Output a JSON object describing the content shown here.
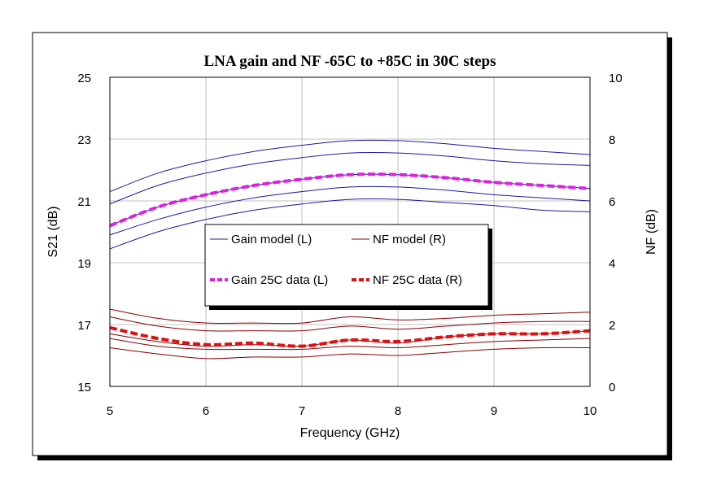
{
  "chart_data": {
    "type": "line",
    "title": "LNA gain and NF -65C to +85C in 30C steps",
    "xlabel": "Frequency (GHz)",
    "ylabel_left": "S21 (dB)",
    "ylabel_right": "NF (dB)",
    "xlim": [
      5,
      10
    ],
    "ylim_left": [
      15,
      25
    ],
    "ylim_right": [
      0,
      10
    ],
    "xticks": [
      "5",
      "6",
      "7",
      "8",
      "9",
      "10"
    ],
    "yticks_left": [
      "15",
      "17",
      "19",
      "21",
      "23",
      "25"
    ],
    "yticks_right": [
      "0",
      "2",
      "4",
      "6",
      "8",
      "10"
    ],
    "grid": true,
    "legend_position": "center",
    "x": [
      5.0,
      5.5,
      6.0,
      6.5,
      7.0,
      7.5,
      8.0,
      8.5,
      9.0,
      9.5,
      10.0
    ],
    "series": [
      {
        "name": "Gain model (L)",
        "axis": "left",
        "color": "#1a1aa0",
        "style": "solid",
        "group": "gain-model",
        "curves": [
          {
            "values": [
              21.3,
              21.9,
              22.3,
              22.6,
              22.8,
              22.95,
              22.95,
              22.85,
              22.7,
              22.6,
              22.5
            ]
          },
          {
            "values": [
              20.9,
              21.5,
              21.9,
              22.2,
              22.4,
              22.55,
              22.55,
              22.45,
              22.3,
              22.2,
              22.15
            ]
          },
          {
            "values": [
              20.2,
              20.8,
              21.2,
              21.5,
              21.7,
              21.85,
              21.85,
              21.75,
              21.6,
              21.5,
              21.4
            ]
          },
          {
            "values": [
              19.9,
              20.4,
              20.8,
              21.1,
              21.3,
              21.45,
              21.45,
              21.35,
              21.2,
              21.1,
              21.0
            ]
          },
          {
            "values": [
              19.45,
              20.0,
              20.4,
              20.7,
              20.9,
              21.05,
              21.05,
              20.95,
              20.85,
              20.7,
              20.65
            ]
          }
        ]
      },
      {
        "name": "NF model (R)",
        "axis": "right",
        "color": "#8b0000",
        "style": "solid",
        "group": "nf-model",
        "curves": [
          {
            "values": [
              2.5,
              2.2,
              2.05,
              2.05,
              2.05,
              2.25,
              2.15,
              2.2,
              2.3,
              2.35,
              2.4
            ]
          },
          {
            "values": [
              2.25,
              1.95,
              1.8,
              1.8,
              1.8,
              1.95,
              1.85,
              1.95,
              2.05,
              2.1,
              2.1
            ]
          },
          {
            "values": [
              1.7,
              1.45,
              1.3,
              1.35,
              1.3,
              1.5,
              1.4,
              1.6,
              1.7,
              1.7,
              1.8
            ]
          },
          {
            "values": [
              1.55,
              1.3,
              1.2,
              1.2,
              1.2,
              1.3,
              1.25,
              1.35,
              1.45,
              1.5,
              1.55
            ]
          },
          {
            "values": [
              1.25,
              1.05,
              0.9,
              0.95,
              0.95,
              1.05,
              1.0,
              1.1,
              1.2,
              1.25,
              1.25
            ]
          }
        ]
      },
      {
        "name": "Gain 25C data (L)",
        "axis": "left",
        "color": "#e020e0",
        "style": "dashed",
        "group": "gain-data",
        "curves": [
          {
            "values": [
              20.2,
              20.8,
              21.2,
              21.5,
              21.7,
              21.85,
              21.85,
              21.75,
              21.6,
              21.5,
              21.4
            ]
          }
        ]
      },
      {
        "name": "NF 25C data (R)",
        "axis": "right",
        "color": "#e01010",
        "style": "dashed",
        "group": "nf-data",
        "curves": [
          {
            "values": [
              1.9,
              1.55,
              1.35,
              1.4,
              1.3,
              1.5,
              1.45,
              1.6,
              1.7,
              1.7,
              1.8
            ]
          }
        ]
      }
    ]
  }
}
